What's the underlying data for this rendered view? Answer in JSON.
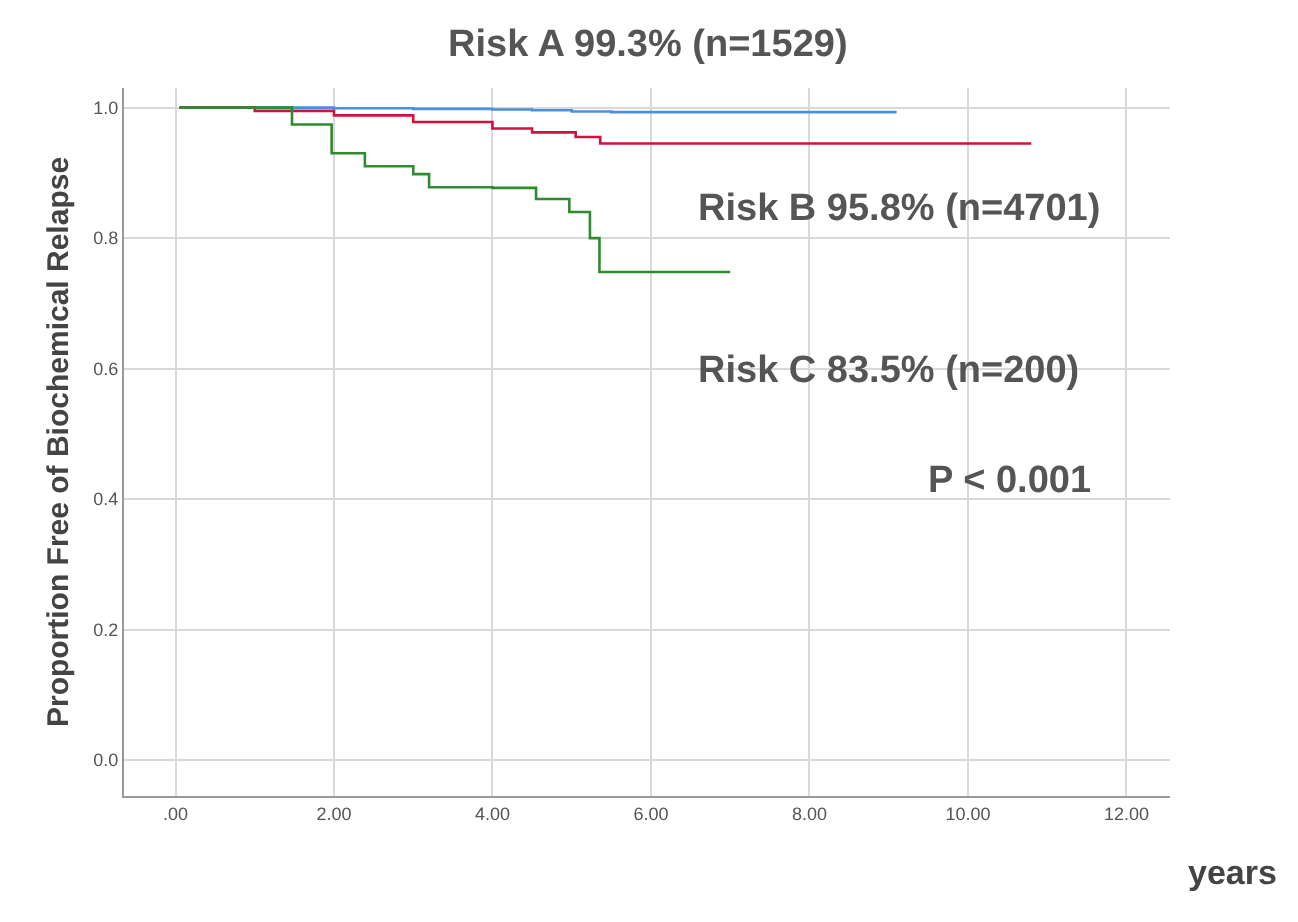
{
  "chart_data": {
    "type": "step",
    "xlabel": "years",
    "ylabel": "Proportion Free of Biochemical Relapse",
    "series": [
      {
        "color": "#4a8fe0",
        "x": [
          0.05,
          1,
          2,
          3,
          4,
          4.5,
          5,
          5.5,
          6,
          7,
          8,
          9.1
        ],
        "values": [
          1.0,
          1.0,
          0.999,
          0.998,
          0.997,
          0.996,
          0.994,
          0.993,
          0.993,
          0.993,
          0.993,
          0.993
        ]
      },
      {
        "color": "#d2123c",
        "x": [
          0.05,
          1,
          2,
          3,
          4,
          4.5,
          5.05,
          5.36,
          6,
          7,
          8,
          9,
          10,
          10.8
        ],
        "values": [
          1.0,
          0.995,
          0.988,
          0.978,
          0.968,
          0.962,
          0.955,
          0.945,
          0.945,
          0.945,
          0.945,
          0.945,
          0.945,
          0.945
        ]
      },
      {
        "color": "#2e8b2e",
        "x": [
          0.05,
          1.05,
          1.47,
          1.97,
          2.39,
          3.0,
          3.2,
          4.0,
          4.55,
          4.97,
          5.23,
          5.35,
          5.6,
          6.0,
          6.6,
          7.0
        ],
        "values": [
          1.0,
          1.0,
          0.974,
          0.93,
          0.91,
          0.898,
          0.878,
          0.877,
          0.86,
          0.84,
          0.8,
          0.748,
          0.748,
          0.748,
          0.748,
          0.748
        ]
      }
    ],
    "xlim": [
      -0.65,
      12.55
    ],
    "ylim": [
      -0.055,
      1.03
    ],
    "xticks": [
      {
        "value": 0,
        "label": ".00"
      },
      {
        "value": 2,
        "label": "2.00"
      },
      {
        "value": 4,
        "label": "4.00"
      },
      {
        "value": 6,
        "label": "6.00"
      },
      {
        "value": 8,
        "label": "8.00"
      },
      {
        "value": 10,
        "label": "10.00"
      },
      {
        "value": 12,
        "label": "12.00"
      }
    ],
    "yticks": [
      {
        "value": 0,
        "label": "0.0"
      },
      {
        "value": 0.2,
        "label": "0.2"
      },
      {
        "value": 0.4,
        "label": "0.4"
      },
      {
        "value": 0.6,
        "label": "0.6"
      },
      {
        "value": 0.8,
        "label": "0.8"
      },
      {
        "value": 1,
        "label": "1.0"
      }
    ],
    "grid": true,
    "line_style": "solid",
    "annotations": [
      "Risk A 99.3% (n=1529)",
      "Risk B 95.8% (n=4701)",
      "Risk C 83.5% (n=200)",
      "P < 0.001"
    ]
  }
}
